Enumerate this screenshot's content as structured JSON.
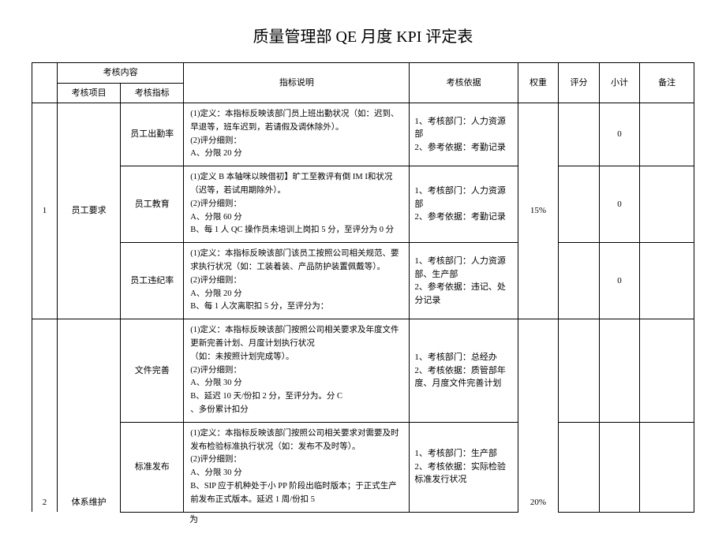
{
  "title": "质量管理部 QE 月度 KPI 评定表",
  "headers": {
    "seq_placeholder": "",
    "assess_content": "考核内容",
    "assess_item": "考核项目",
    "assess_metric": "考核指标",
    "metric_desc": "指标说明",
    "basis": "考核依据",
    "weight": "权重",
    "score": "评分",
    "subtotal": "小计",
    "remark": "备注"
  },
  "col_widths": {
    "seq": "28px",
    "item": "70px",
    "metric": "70px",
    "desc": "250px",
    "basis": "120px",
    "weight": "45px",
    "score": "45px",
    "subtotal": "45px",
    "remark": "60px"
  },
  "rows": [
    {
      "seq": "1",
      "item": "员工要求",
      "weight": "15%",
      "metrics": [
        {
          "name": "员工出勤率",
          "desc": "(1)定义：本指标反映该部门员上班出勤状况（如：迟到、早退等，班车迟到，若请假及调休除外）。\n(2)评分细则：\n    A、分限 20 分",
          "basis": "1、考核部门：人力资源部\n2、参考依据：考勤记录",
          "subtotal": "0"
        },
        {
          "name": "员工教育",
          "desc": "(1)定义 B 本轴咪以映借初】旷工至教评有倒 IM I和状况（迟等，若试用期除外）。\n(2)评分细则：\n    A、分限 60 分\n    B、每 1 人 QC 操作员未培训上岗扣 5 分，至评分为 0 分",
          "basis": "1、考核部门：人力资源部\n2、参考依据：考勤记录",
          "subtotal": "0"
        },
        {
          "name": "员工违纪率",
          "desc": "(1)定义：本指标反映该部门该员工按照公司相关规范、要求执行状况（如：工装着装、产品防护装置佩戴等）。\n(2)评分细则：\n    A、分限 20 分\n    B、每 1 人次离职扣 5 分，至评分为：",
          "basis": "1、考核部门：人力资源部、生产部\n2、参考依据：违记、处分记录",
          "subtotal": "0"
        }
      ]
    },
    {
      "seq": "2",
      "item": "体系维护",
      "weight": "20%",
      "metrics": [
        {
          "name": "文件完善",
          "desc": "(1)定义：本指标反映该部门按照公司相关要求及年度文件更新完善计划、月度计划执行状况\n（如：未按照计划完成等）。\n(2)评分细则：\n    A、分限 30 分\n    B、延迟 10 天/份扣 2 分，至评分为。分 C\n    、多份累计扣分",
          "basis": "1、考核部门：总经办\n2、考核依据：质管部年度、月度文件完善计划",
          "subtotal": ""
        },
        {
          "name": "标准发布",
          "desc": "(1)定义：本指标反映该部门按照公司相关要求对需要及时发布检验标准执行状况（如：发布不及时等）。\n(2)评分细则：\n    A、分限 30 分\n    B、SIP 应于机种处于小 PP 阶段出临时版本；于正式生产前发布正式版本。延迟 1 周/份扣 5",
          "basis": "1、考核部门：生产部\n2、考核依据：实际检验标准发行状况",
          "subtotal": ""
        }
      ]
    }
  ],
  "trailing": "为"
}
